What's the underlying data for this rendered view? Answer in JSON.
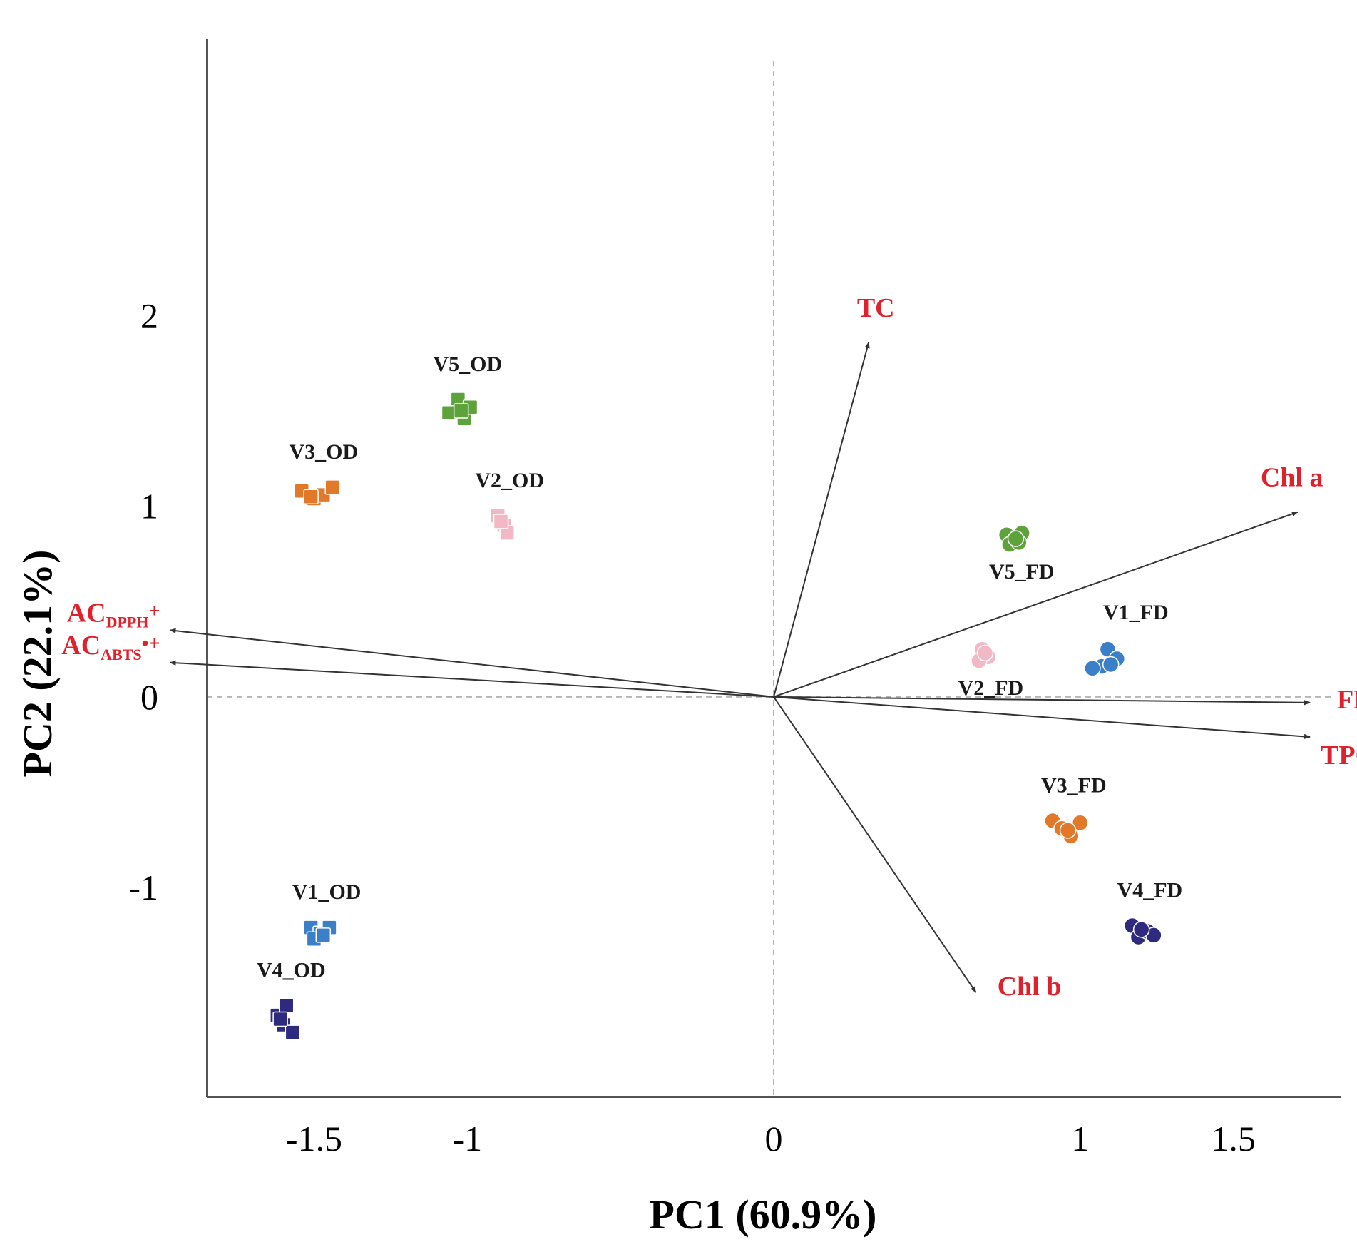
{
  "chart_data": {
    "type": "scatter",
    "xlabel": "PC1 (60.9%)",
    "ylabel": "PC2 (22.1%)",
    "xlim": [
      -1.85,
      1.85
    ],
    "ylim": [
      -2.1,
      3.45
    ],
    "x_ticks": [
      {
        "value": -1.5,
        "label": "-1.5"
      },
      {
        "value": -1,
        "label": "-1"
      },
      {
        "value": 0,
        "label": "0"
      },
      {
        "value": 1,
        "label": "1"
      },
      {
        "value": 1.5,
        "label": "1.5"
      }
    ],
    "y_ticks": [
      {
        "value": 2,
        "label": "2"
      },
      {
        "value": 1,
        "label": "1"
      },
      {
        "value": 0,
        "label": "0"
      },
      {
        "value": -1,
        "label": "-1"
      }
    ],
    "grid": false,
    "reference_lines": {
      "x": 0,
      "y": 0,
      "style": "dashed"
    },
    "colors": {
      "V1": "#3a7fc8",
      "V2": "#f2b8c6",
      "V3": "#e2782a",
      "V4": "#2e2a80",
      "V5": "#5ea23c",
      "variable": "#e0202a",
      "arrow": "#333333",
      "guide": "#b5b5b5"
    },
    "observations": [
      {
        "label": "V5_OD",
        "group": "V5",
        "marker": "square",
        "points": [
          [
            -1.03,
            1.56
          ],
          [
            -1.01,
            1.46
          ],
          [
            -1.06,
            1.49
          ],
          [
            -0.99,
            1.52
          ],
          [
            -1.02,
            1.5
          ]
        ]
      },
      {
        "label": "V3_OD",
        "group": "V3",
        "marker": "square",
        "points": [
          [
            -1.54,
            1.08
          ],
          [
            -1.5,
            1.04
          ],
          [
            -1.47,
            1.06
          ],
          [
            -1.44,
            1.1
          ],
          [
            -1.51,
            1.05
          ]
        ]
      },
      {
        "label": "V2_OD",
        "group": "V2",
        "marker": "square",
        "points": [
          [
            -0.9,
            0.95
          ],
          [
            -0.88,
            0.9
          ],
          [
            -0.87,
            0.86
          ],
          [
            -0.89,
            0.92
          ]
        ]
      },
      {
        "label": "V1_OD",
        "group": "V1",
        "marker": "square",
        "points": [
          [
            -1.51,
            -1.21
          ],
          [
            -1.48,
            -1.24
          ],
          [
            -1.45,
            -1.21
          ],
          [
            -1.5,
            -1.27
          ],
          [
            -1.47,
            -1.25
          ]
        ]
      },
      {
        "label": "V4_OD",
        "group": "V4",
        "marker": "square",
        "points": [
          [
            -1.62,
            -1.67
          ],
          [
            -1.59,
            -1.62
          ],
          [
            -1.6,
            -1.72
          ],
          [
            -1.57,
            -1.76
          ],
          [
            -1.61,
            -1.69
          ]
        ]
      },
      {
        "label": "V5_FD",
        "group": "V5",
        "marker": "circle",
        "points": [
          [
            0.76,
            0.85
          ],
          [
            0.81,
            0.86
          ],
          [
            0.77,
            0.8
          ],
          [
            0.8,
            0.81
          ],
          [
            0.79,
            0.83
          ]
        ]
      },
      {
        "label": "V2_FD",
        "group": "V2",
        "marker": "circle",
        "points": [
          [
            0.68,
            0.25
          ],
          [
            0.7,
            0.21
          ],
          [
            0.67,
            0.19
          ],
          [
            0.69,
            0.23
          ]
        ]
      },
      {
        "label": "V1_FD",
        "group": "V1",
        "marker": "circle",
        "points": [
          [
            1.09,
            0.25
          ],
          [
            1.12,
            0.2
          ],
          [
            1.07,
            0.16
          ],
          [
            1.04,
            0.15
          ],
          [
            1.1,
            0.17
          ]
        ]
      },
      {
        "label": "V3_FD",
        "group": "V3",
        "marker": "circle",
        "points": [
          [
            0.91,
            -0.65
          ],
          [
            0.94,
            -0.69
          ],
          [
            0.97,
            -0.73
          ],
          [
            1.0,
            -0.66
          ],
          [
            0.96,
            -0.7
          ]
        ]
      },
      {
        "label": "V4_FD",
        "group": "V4",
        "marker": "circle",
        "points": [
          [
            1.17,
            -1.2
          ],
          [
            1.19,
            -1.26
          ],
          [
            1.22,
            -1.23
          ],
          [
            1.24,
            -1.25
          ],
          [
            1.2,
            -1.22
          ]
        ]
      }
    ],
    "variables": [
      {
        "label": "TC",
        "subscript": "",
        "suffix": "",
        "x": 0.31,
        "y": 1.86
      },
      {
        "label": "Chl a",
        "subscript": "",
        "suffix": "",
        "x": 1.71,
        "y": 0.97
      },
      {
        "label": "AC",
        "subscript": "DPPH",
        "suffix": "+",
        "x": -1.97,
        "y": 0.35
      },
      {
        "label": "AC",
        "subscript": "ABTS",
        "suffix": "•+",
        "x": -1.97,
        "y": 0.18
      },
      {
        "label": "FLC",
        "subscript": "",
        "suffix": "",
        "x": 1.75,
        "y": -0.03
      },
      {
        "label": "TPC",
        "subscript": "",
        "suffix": "",
        "x": 1.75,
        "y": -0.21
      },
      {
        "label": "Chl b",
        "subscript": "",
        "suffix": "",
        "x": 0.66,
        "y": -1.55
      }
    ]
  }
}
